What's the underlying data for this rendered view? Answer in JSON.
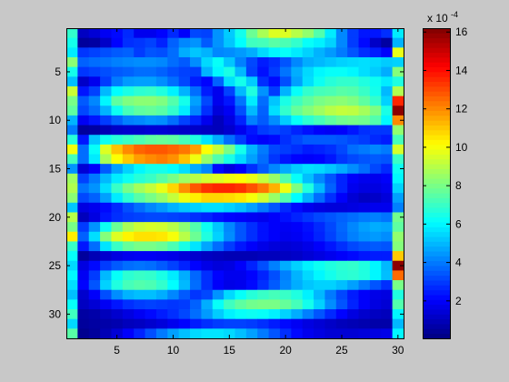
{
  "chart_data": {
    "type": "heatmap",
    "title": "",
    "xlabel": "",
    "ylabel": "",
    "xlim": [
      0.5,
      30.5
    ],
    "ylim": [
      0.5,
      32.5
    ],
    "y_direction": "reversed",
    "xticks": [
      5,
      10,
      15,
      20,
      25,
      30
    ],
    "yticks": [
      5,
      10,
      15,
      20,
      25,
      30
    ],
    "colormap": "jet",
    "colorbar": {
      "range": [
        0.05,
        16.2
      ],
      "ticks": [
        2,
        4,
        6,
        8,
        10,
        12,
        14,
        16
      ],
      "exponent_label": "x 10",
      "exponent_power": "-4"
    },
    "grid": false,
    "description_of_values": "matrix of 32 rows x 30 columns, values in units of 1e-4",
    "values": [
      [
        6.9,
        1.1,
        1.4,
        1.9,
        2.2,
        2.7,
        1.8,
        1.8,
        2.1,
        2.7,
        2.0,
        3.2,
        3.1,
        4.4,
        5.3,
        6.4,
        7.8,
        8.8,
        9.6,
        9.6,
        9.0,
        8.4,
        7.4,
        5.8,
        4.2,
        3.0,
        2.4,
        2.4,
        2.8,
        5.8
      ],
      [
        6.4,
        0.5,
        0.6,
        1.2,
        2.1,
        2.8,
        2.9,
        3.1,
        2.6,
        3.6,
        4.2,
        4.4,
        3.5,
        4.4,
        5.2,
        6.1,
        7.1,
        7.2,
        7.5,
        7.3,
        6.9,
        6.2,
        5.9,
        5.4,
        4.2,
        3.0,
        2.2,
        1.2,
        0.6,
        4.9
      ],
      [
        5.8,
        2.9,
        3.1,
        3.3,
        3.5,
        3.6,
        3.0,
        3.4,
        3.3,
        3.8,
        4.8,
        5.2,
        4.9,
        4.2,
        4.3,
        4.5,
        4.8,
        5.5,
        6.0,
        6.2,
        5.8,
        5.4,
        4.9,
        4.5,
        4.0,
        3.4,
        2.8,
        2.5,
        2.0,
        9.8
      ],
      [
        8.3,
        3.6,
        3.8,
        3.9,
        4.1,
        4.2,
        4.3,
        4.3,
        4.2,
        3.8,
        3.5,
        4.3,
        5.5,
        6.2,
        5.2,
        4.1,
        3.2,
        2.5,
        2.8,
        3.4,
        4.2,
        4.8,
        5.0,
        5.2,
        5.4,
        5.5,
        5.6,
        5.5,
        5.3,
        5.4
      ],
      [
        6.4,
        2.9,
        3.1,
        3.3,
        3.5,
        3.6,
        3.8,
        3.8,
        3.6,
        3.3,
        3.1,
        3.0,
        4.9,
        6.0,
        6.5,
        5.0,
        3.1,
        2.3,
        3.0,
        3.9,
        4.8,
        5.5,
        6.0,
        6.2,
        6.2,
        6.0,
        5.6,
        5.3,
        4.8,
        8.2
      ],
      [
        5.1,
        1.2,
        1.8,
        3.0,
        4.0,
        4.5,
        4.6,
        4.6,
        4.3,
        3.8,
        3.2,
        2.5,
        2.1,
        3.6,
        5.6,
        6.4,
        5.3,
        2.8,
        2.2,
        3.3,
        4.6,
        5.6,
        6.3,
        6.7,
        6.9,
        6.9,
        6.6,
        6.3,
        5.8,
        6.6
      ],
      [
        9.3,
        2.4,
        3.1,
        5.0,
        6.1,
        6.5,
        6.8,
        6.9,
        6.6,
        5.9,
        4.9,
        3.8,
        2.5,
        1.8,
        3.1,
        5.0,
        6.6,
        4.4,
        3.0,
        4.9,
        6.2,
        6.9,
        7.2,
        7.3,
        7.5,
        7.4,
        7.0,
        6.4,
        5.0,
        8.9
      ],
      [
        8.0,
        3.5,
        4.2,
        6.0,
        7.6,
        8.1,
        8.3,
        8.3,
        8.1,
        7.4,
        6.4,
        4.6,
        3.2,
        1.8,
        2.4,
        3.9,
        5.8,
        3.8,
        5.2,
        6.5,
        7.1,
        7.6,
        8.0,
        8.2,
        8.3,
        8.1,
        7.6,
        6.9,
        5.4,
        13.6
      ],
      [
        7.6,
        3.2,
        3.8,
        4.9,
        6.3,
        7.2,
        7.6,
        7.7,
        7.5,
        6.9,
        5.8,
        4.2,
        2.8,
        1.5,
        1.9,
        3.3,
        5.0,
        3.6,
        5.6,
        6.9,
        7.7,
        8.2,
        8.6,
        9.0,
        9.2,
        9.1,
        8.7,
        8.1,
        6.5,
        16.0
      ],
      [
        4.9,
        1.9,
        2.4,
        3.0,
        3.6,
        4.1,
        4.2,
        4.4,
        4.3,
        3.8,
        3.1,
        2.6,
        1.8,
        1.0,
        1.6,
        2.6,
        4.1,
        3.5,
        4.3,
        5.3,
        6.2,
        6.8,
        7.2,
        7.6,
        7.9,
        8.0,
        7.9,
        7.4,
        6.0,
        12.0
      ],
      [
        4.0,
        0.5,
        0.6,
        0.9,
        1.2,
        1.3,
        1.3,
        1.4,
        1.4,
        1.3,
        1.2,
        1.2,
        1.1,
        1.0,
        1.3,
        1.8,
        2.4,
        3.0,
        3.2,
        3.0,
        2.6,
        2.3,
        2.0,
        1.9,
        2.0,
        2.4,
        2.8,
        2.9,
        2.9,
        8.4
      ],
      [
        6.7,
        2.4,
        5.2,
        6.3,
        6.7,
        7.0,
        7.3,
        7.6,
        7.7,
        7.6,
        7.2,
        6.6,
        5.7,
        4.8,
        3.8,
        3.0,
        2.2,
        2.0,
        2.2,
        2.8,
        3.2,
        3.5,
        3.5,
        3.5,
        3.4,
        3.2,
        3.0,
        2.7,
        2.5,
        7.2
      ],
      [
        10.0,
        3.8,
        6.2,
        9.6,
        11.1,
        12.0,
        12.6,
        12.8,
        12.8,
        12.6,
        12.3,
        11.7,
        10.1,
        9.2,
        8.0,
        6.4,
        4.9,
        4.0,
        3.2,
        3.0,
        2.8,
        2.5,
        2.6,
        2.8,
        3.2,
        3.8,
        4.0,
        4.2,
        4.0,
        9.5
      ],
      [
        7.2,
        3.8,
        5.8,
        8.8,
        10.1,
        11.0,
        11.7,
        12.0,
        12.2,
        11.9,
        11.1,
        9.9,
        8.5,
        7.4,
        6.5,
        5.5,
        4.6,
        3.8,
        2.9,
        2.4,
        2.1,
        2.0,
        2.1,
        2.4,
        2.9,
        3.2,
        3.4,
        3.5,
        3.4,
        7.0
      ],
      [
        4.4,
        1.4,
        2.0,
        3.5,
        4.6,
        5.4,
        6.0,
        6.4,
        6.4,
        6.1,
        5.6,
        4.8,
        4.2,
        2.2,
        1.6,
        2.0,
        2.8,
        3.5,
        4.2,
        4.8,
        5.3,
        5.6,
        5.5,
        5.2,
        4.8,
        4.3,
        3.8,
        3.2,
        2.7,
        6.3
      ],
      [
        8.6,
        3.1,
        4.0,
        5.0,
        5.8,
        6.3,
        6.7,
        7.0,
        7.5,
        8.0,
        8.6,
        9.0,
        9.4,
        9.6,
        9.9,
        10.1,
        9.8,
        9.2,
        8.5,
        7.4,
        6.2,
        5.1,
        4.2,
        3.4,
        2.6,
        2.0,
        1.8,
        1.8,
        2.0,
        6.0
      ],
      [
        8.9,
        3.9,
        4.4,
        5.6,
        7.0,
        8.0,
        8.7,
        9.2,
        9.8,
        10.8,
        11.9,
        12.8,
        13.4,
        13.6,
        13.6,
        13.4,
        12.9,
        12.3,
        11.4,
        9.9,
        8.1,
        6.6,
        5.0,
        3.6,
        2.6,
        1.8,
        1.6,
        1.6,
        1.8,
        5.4
      ],
      [
        8.3,
        3.2,
        3.6,
        4.6,
        5.8,
        6.8,
        7.5,
        8.0,
        8.5,
        9.2,
        9.9,
        10.4,
        10.8,
        10.8,
        10.7,
        10.5,
        10.0,
        9.4,
        8.5,
        7.4,
        6.1,
        4.9,
        3.8,
        2.8,
        2.0,
        1.4,
        1.1,
        1.2,
        1.5,
        4.6
      ],
      [
        5.2,
        1.6,
        1.8,
        2.2,
        2.7,
        3.3,
        3.8,
        4.2,
        4.5,
        4.9,
        5.2,
        5.4,
        5.6,
        5.6,
        5.4,
        5.1,
        4.6,
        4.0,
        3.4,
        2.7,
        2.2,
        1.8,
        1.6,
        1.5,
        1.5,
        1.6,
        1.7,
        1.8,
        1.8,
        4.1
      ],
      [
        9.0,
        1.0,
        1.6,
        2.4,
        2.8,
        3.0,
        3.1,
        3.2,
        3.2,
        3.1,
        3.0,
        2.8,
        2.6,
        2.3,
        2.1,
        2.0,
        1.9,
        1.8,
        2.0,
        2.3,
        2.6,
        2.9,
        3.2,
        3.4,
        3.6,
        3.8,
        4.0,
        4.1,
        3.9,
        7.9
      ],
      [
        8.0,
        3.0,
        4.4,
        6.3,
        7.8,
        8.8,
        9.3,
        9.5,
        9.4,
        9.0,
        8.3,
        7.4,
        6.3,
        5.2,
        4.2,
        3.4,
        2.8,
        2.3,
        2.0,
        1.9,
        2.0,
        2.3,
        2.7,
        3.2,
        3.7,
        4.2,
        4.6,
        4.8,
        4.7,
        7.6
      ],
      [
        10.4,
        3.6,
        5.6,
        8.2,
        9.6,
        10.3,
        10.6,
        10.6,
        10.5,
        10.0,
        9.0,
        7.8,
        6.6,
        5.4,
        4.3,
        3.4,
        2.8,
        2.3,
        2.0,
        1.8,
        1.9,
        2.2,
        2.6,
        3.1,
        3.6,
        4.1,
        4.4,
        4.5,
        4.3,
        8.4
      ],
      [
        7.0,
        2.4,
        3.8,
        5.7,
        7.0,
        7.7,
        8.0,
        8.0,
        7.8,
        7.3,
        6.5,
        5.7,
        4.7,
        3.8,
        3.0,
        2.4,
        2.0,
        1.7,
        1.5,
        1.4,
        1.5,
        1.7,
        2.0,
        2.4,
        2.8,
        3.2,
        3.4,
        3.5,
        3.4,
        8.2
      ],
      [
        6.2,
        0.5,
        0.9,
        1.3,
        1.6,
        1.8,
        1.9,
        1.9,
        1.8,
        1.7,
        1.5,
        1.3,
        1.1,
        1.0,
        0.9,
        0.9,
        0.9,
        1.0,
        1.0,
        1.1,
        1.2,
        1.4,
        1.6,
        1.8,
        2.0,
        2.2,
        2.4,
        2.5,
        2.5,
        11.0
      ],
      [
        5.5,
        1.6,
        2.2,
        3.0,
        3.5,
        3.8,
        3.9,
        3.8,
        3.5,
        3.1,
        2.6,
        2.1,
        1.7,
        1.5,
        1.6,
        2.0,
        2.6,
        3.3,
        4.1,
        4.8,
        5.4,
        5.9,
        6.3,
        6.6,
        6.8,
        6.9,
        6.6,
        6.0,
        5.0,
        16.0
      ],
      [
        6.0,
        1.9,
        3.0,
        5.0,
        6.2,
        6.8,
        7.0,
        6.9,
        6.5,
        5.8,
        4.8,
        3.7,
        2.8,
        2.1,
        1.8,
        1.8,
        2.1,
        2.6,
        3.3,
        4.1,
        4.9,
        5.5,
        6.0,
        6.4,
        6.7,
        6.8,
        6.6,
        6.0,
        5.1,
        12.5
      ],
      [
        5.6,
        2.1,
        3.4,
        5.4,
        6.6,
        7.2,
        7.4,
        7.3,
        6.9,
        6.1,
        5.0,
        3.8,
        2.8,
        2.0,
        1.7,
        1.8,
        2.2,
        2.8,
        3.5,
        4.2,
        4.8,
        5.2,
        5.4,
        5.4,
        5.1,
        4.6,
        4.0,
        3.4,
        2.8,
        8.0
      ],
      [
        5.1,
        1.3,
        2.0,
        3.3,
        4.3,
        4.9,
        5.1,
        5.1,
        4.8,
        4.2,
        3.5,
        2.9,
        3.2,
        4.4,
        5.5,
        6.2,
        6.7,
        7.0,
        7.2,
        7.0,
        6.6,
        5.9,
        5.0,
        4.0,
        3.2,
        2.5,
        2.0,
        1.7,
        1.6,
        6.6
      ],
      [
        6.2,
        1.1,
        1.4,
        1.9,
        2.4,
        2.8,
        3.0,
        3.1,
        3.0,
        2.9,
        3.0,
        3.6,
        4.8,
        6.2,
        7.1,
        7.6,
        7.9,
        8.0,
        8.0,
        7.7,
        7.2,
        6.4,
        5.4,
        4.3,
        3.4,
        2.6,
        2.0,
        1.6,
        1.4,
        7.4
      ],
      [
        7.1,
        0.6,
        0.7,
        1.0,
        1.3,
        1.6,
        1.9,
        2.2,
        2.5,
        2.8,
        3.2,
        3.8,
        4.5,
        5.3,
        5.9,
        6.2,
        6.3,
        6.2,
        5.9,
        5.4,
        4.8,
        4.1,
        3.4,
        2.7,
        2.1,
        1.6,
        1.3,
        1.1,
        1.0,
        6.0
      ],
      [
        5.5,
        0.5,
        0.6,
        0.7,
        0.8,
        1.0,
        1.1,
        1.3,
        1.5,
        1.8,
        2.1,
        2.5,
        2.8,
        3.0,
        3.1,
        3.1,
        3.0,
        2.8,
        2.5,
        2.2,
        1.9,
        1.6,
        1.4,
        1.2,
        1.0,
        0.9,
        0.8,
        0.7,
        0.7,
        5.0
      ],
      [
        7.5,
        0.3,
        0.5,
        0.9,
        1.4,
        2.0,
        2.6,
        3.3,
        4.0,
        4.6,
        5.1,
        5.5,
        5.7,
        5.7,
        5.5,
        5.1,
        4.6,
        4.0,
        3.4,
        2.8,
        2.2,
        1.8,
        1.6,
        1.4,
        1.4,
        1.4,
        1.5,
        1.6,
        1.7,
        6.0
      ]
    ]
  }
}
